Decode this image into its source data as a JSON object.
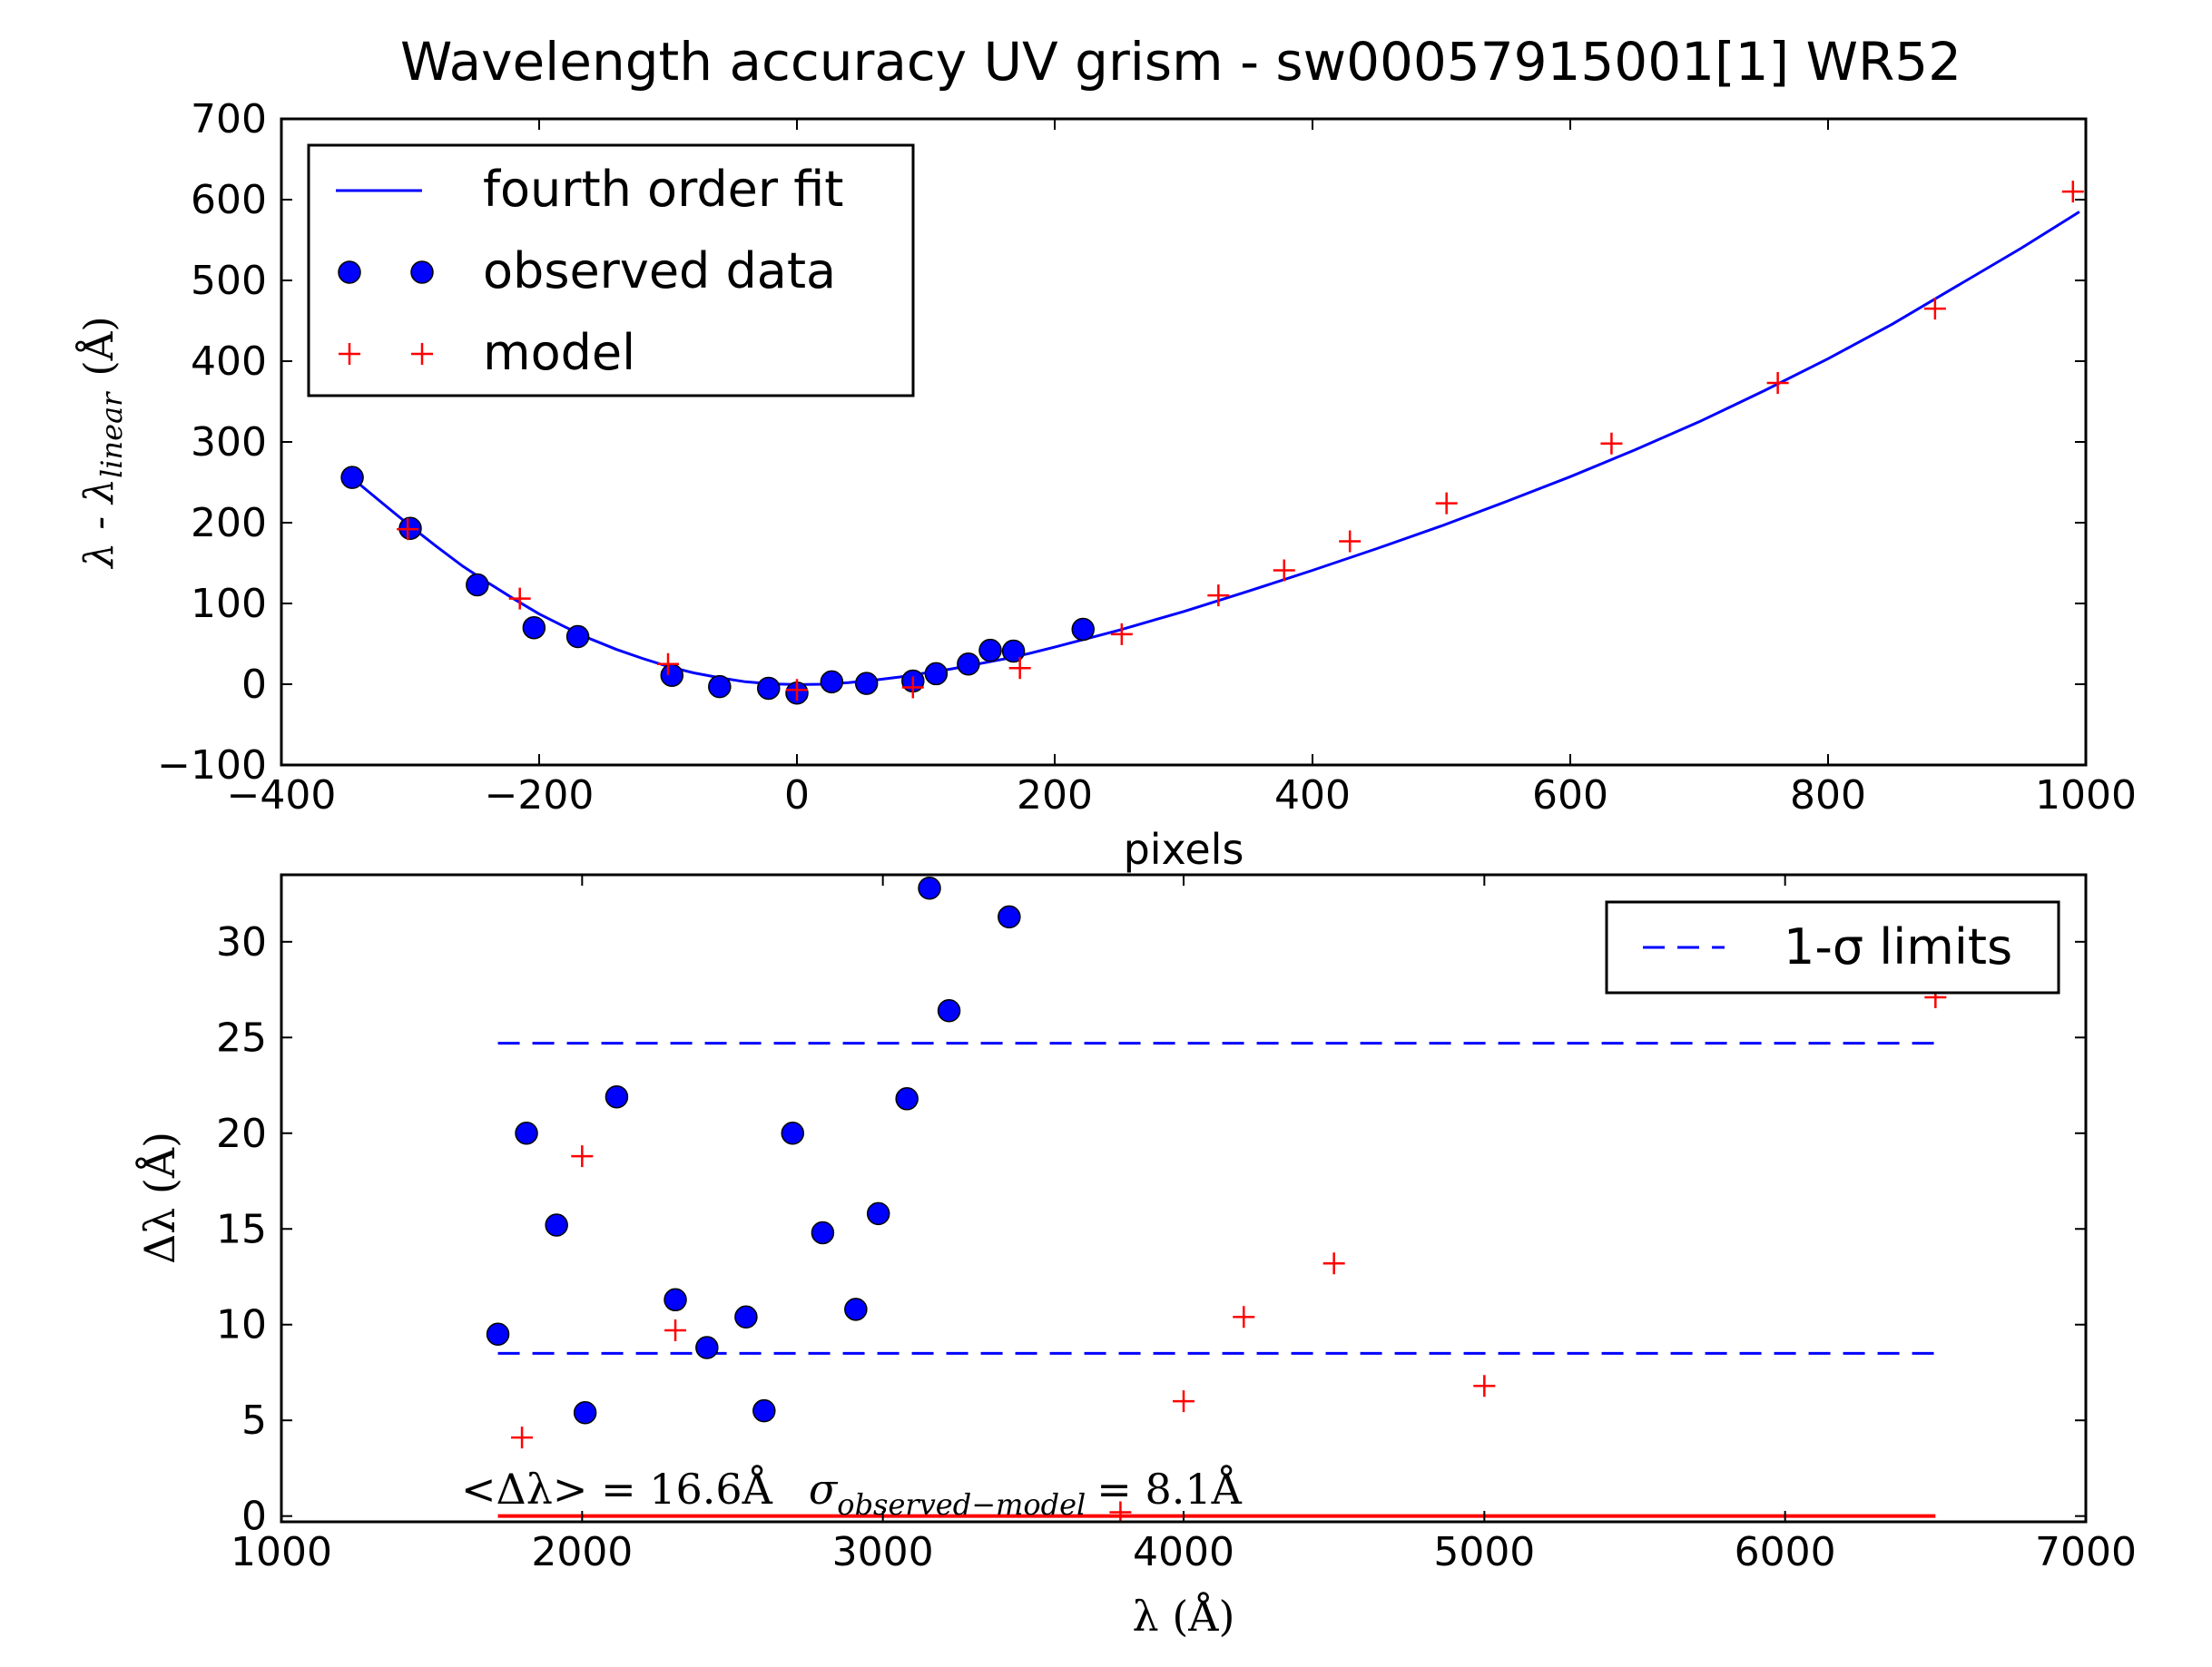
{
  "chart_data": [
    {
      "type": "scatter",
      "title": "Wavelength accuracy UV grism - sw00057915001[1] WR52",
      "xlabel": "pixels",
      "ylabel": {
        "lambda": "λ - λ",
        "sub": "linear",
        "unit": "(Å)"
      },
      "xlim": [
        -400,
        1000
      ],
      "ylim": [
        -100,
        700
      ],
      "xticks": [
        -400,
        -200,
        0,
        200,
        400,
        600,
        800,
        1000
      ],
      "yticks": [
        -100,
        0,
        100,
        200,
        300,
        400,
        500,
        600,
        700
      ],
      "grid": false,
      "legend": {
        "placement": "top-left",
        "entries": [
          "fourth order fit",
          "observed data",
          "model"
        ]
      },
      "series": [
        {
          "name": "fourth order fit",
          "kind": "line",
          "color": "#0000ff",
          "x": [
            -345,
            -320,
            -300,
            -280,
            -260,
            -240,
            -220,
            -200,
            -180,
            -160,
            -140,
            -120,
            -100,
            -80,
            -60,
            -40,
            -20,
            0,
            20,
            40,
            60,
            80,
            100,
            120,
            140,
            160,
            180,
            200,
            250,
            300,
            350,
            400,
            450,
            500,
            550,
            600,
            650,
            700,
            750,
            800,
            850,
            900,
            950,
            995
          ],
          "y": [
            255,
            222,
            196,
            171,
            147,
            126,
            106,
            87,
            71,
            56,
            43,
            32,
            22,
            14,
            8,
            3,
            0.5,
            -0.5,
            0,
            2,
            5,
            9,
            14,
            19,
            25,
            31,
            38,
            46,
            67,
            90,
            115,
            141,
            168,
            196,
            226,
            257,
            290,
            325,
            363,
            403,
            446,
            493,
            540,
            585
          ]
        },
        {
          "name": "observed data",
          "kind": "points",
          "color": "#0000ff",
          "x": [
            -345,
            -300,
            -248,
            -204,
            -170,
            -97,
            -60,
            -22,
            0,
            27,
            54,
            90,
            108,
            133,
            150,
            168,
            222
          ],
          "y": [
            256,
            193,
            123,
            70,
            59,
            11,
            -3,
            -5,
            -11,
            3,
            1,
            4,
            13,
            25,
            42,
            41,
            68
          ]
        },
        {
          "name": "model",
          "kind": "plus",
          "color": "#ff0000",
          "x": [
            -302,
            -215,
            -100,
            0,
            90,
            173,
            252,
            327,
            378,
            429,
            504,
            632,
            761,
            883,
            990
          ],
          "y": [
            192,
            106,
            25,
            -7,
            -4,
            20,
            62,
            110,
            141,
            177,
            224,
            298,
            373,
            465,
            610
          ]
        }
      ]
    },
    {
      "type": "scatter",
      "title": "",
      "xlabel": "λ (Å)",
      "ylabel": "Δλ (Å)",
      "xlim": [
        1000,
        7000
      ],
      "ylim": [
        -0.3,
        33.5
      ],
      "xticks": [
        1000,
        2000,
        3000,
        4000,
        5000,
        6000,
        7000
      ],
      "yticks": [
        0,
        5,
        10,
        15,
        20,
        25,
        30
      ],
      "grid": false,
      "legend": {
        "placement": "top-right",
        "entries": [
          "1-σ limits"
        ]
      },
      "annotations": {
        "mean": "<Δλ> = 16.6Å",
        "sigma_symbol": "σ",
        "sigma_sub": "observed−model",
        "sigma_value": "= 8.1Å"
      },
      "series": [
        {
          "name": "1-σ limits",
          "kind": "dashed-lines",
          "color": "#0000ff",
          "x": [
            1720,
            6500
          ],
          "levels": [
            24.7,
            8.5
          ]
        },
        {
          "name": "",
          "kind": "zero-line",
          "color": "#ff0000",
          "x": [
            1720,
            6500
          ],
          "y": 0
        },
        {
          "name": "observed data",
          "kind": "points",
          "color": "#0000ff",
          "x": [
            1720,
            1815,
            1915,
            2010,
            2115,
            2310,
            2415,
            2545,
            2605,
            2700,
            2800,
            2910,
            2985,
            3080,
            3155,
            3220,
            3420
          ],
          "y": [
            9.5,
            20.0,
            15.2,
            5.4,
            21.9,
            11.3,
            8.8,
            10.4,
            5.5,
            20.0,
            14.8,
            10.8,
            15.8,
            21.8,
            32.8,
            26.4,
            31.3
          ]
        },
        {
          "name": "model",
          "kind": "plus",
          "color": "#ff0000",
          "x": [
            1800,
            2000,
            2310,
            3790,
            4000,
            4200,
            4500,
            5000,
            6500
          ],
          "y": [
            4.1,
            18.8,
            9.7,
            0.2,
            6.0,
            10.4,
            13.2,
            6.8,
            27.1
          ]
        }
      ]
    }
  ]
}
